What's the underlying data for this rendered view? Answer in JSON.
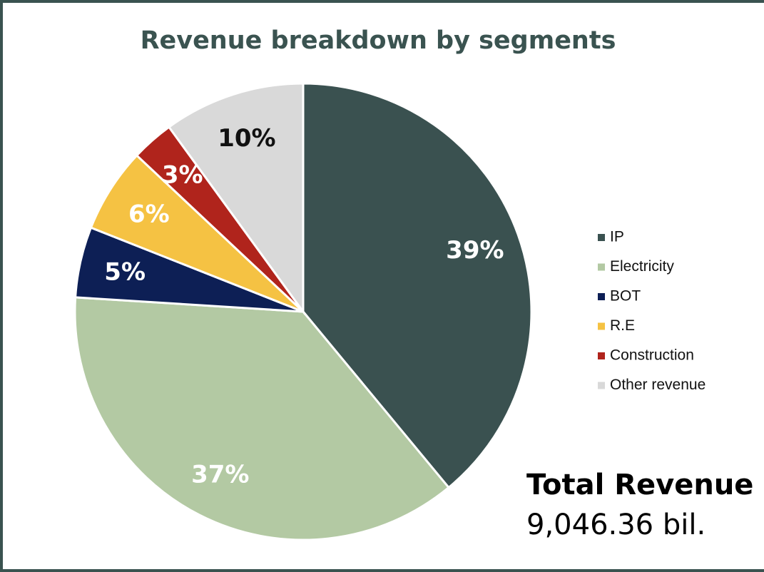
{
  "chart_data": {
    "type": "pie",
    "title": "Revenue breakdown by segments",
    "categories": [
      "IP",
      "Electricity",
      "BOT",
      "R.E",
      "Construction",
      "Other revenue"
    ],
    "values": [
      39,
      37,
      5,
      6,
      3,
      10
    ],
    "value_labels": [
      "39%",
      "37%",
      "5%",
      "6%",
      "3%",
      "10%"
    ],
    "colors": [
      "#3a5150",
      "#b3c9a3",
      "#0d1f55",
      "#f5c243",
      "#b0241c",
      "#d9d9d9"
    ],
    "label_colors": [
      "#ffffff",
      "#ffffff",
      "#ffffff",
      "#ffffff",
      "#ffffff",
      "#111111"
    ],
    "legend": "right",
    "annotations": [
      "Total Revenue",
      "9,046.36 bil."
    ]
  }
}
